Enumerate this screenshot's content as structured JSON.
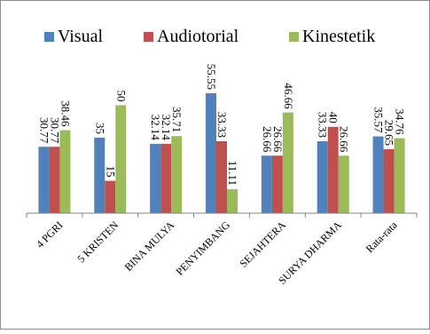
{
  "chart_data": {
    "type": "bar",
    "categories": [
      "4 PGRI",
      "5 KRISTEN",
      "BINA MULYA",
      "PENYIMBANG",
      "SEJAHTERA",
      "SURYA DHARMA",
      "Rata-rata"
    ],
    "series": [
      {
        "name": "Visual",
        "color": "#4F81BD",
        "values": [
          30.77,
          35,
          32.14,
          55.55,
          26.66,
          33.33,
          35.57
        ],
        "labels": [
          "30.77",
          "35",
          "32.14",
          "55.55",
          "26.66",
          "33.33",
          "35.57"
        ]
      },
      {
        "name": "Audiotorial",
        "color": "#C0504D",
        "values": [
          30.77,
          15,
          32.14,
          33.33,
          26.66,
          40,
          29.65
        ],
        "labels": [
          "30.77",
          "15",
          "32.14",
          "33.33",
          "26.66",
          "40",
          "29.65"
        ]
      },
      {
        "name": "Kinestetik",
        "color": "#9BBB59",
        "values": [
          38.46,
          50,
          35.71,
          11.11,
          46.66,
          26.66,
          34.76
        ],
        "labels": [
          "38.46",
          "50",
          "35.71",
          "11.11",
          "46.66",
          "26.66",
          "34.76"
        ]
      }
    ],
    "ylim": [
      0,
      60
    ],
    "legend": "top",
    "grid": false,
    "title": "",
    "xlabel": "",
    "ylabel": ""
  }
}
